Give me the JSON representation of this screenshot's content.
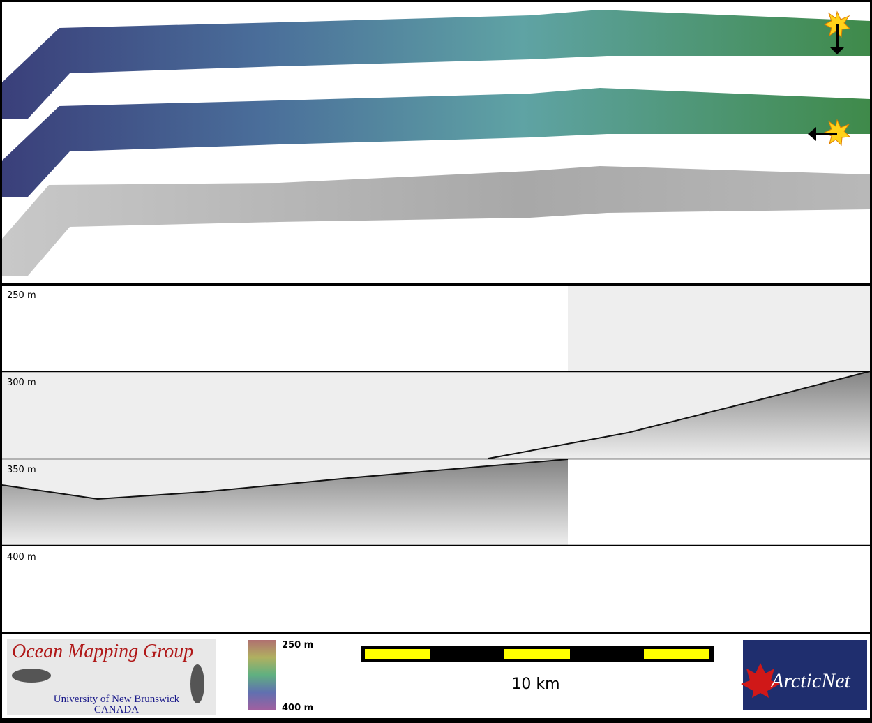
{
  "profile": {
    "depth_labels": [
      "250 m",
      "300 m",
      "350 m",
      "400 m"
    ]
  },
  "legend": {
    "logo": {
      "title": "Ocean Mapping Group",
      "subtitle": "University of New Brunswick",
      "country": "CANADA"
    },
    "colorbar": {
      "top": "250 m",
      "bottom": "400 m"
    },
    "scale_bar": "10 km",
    "partner_logo": "ArcticNet"
  }
}
